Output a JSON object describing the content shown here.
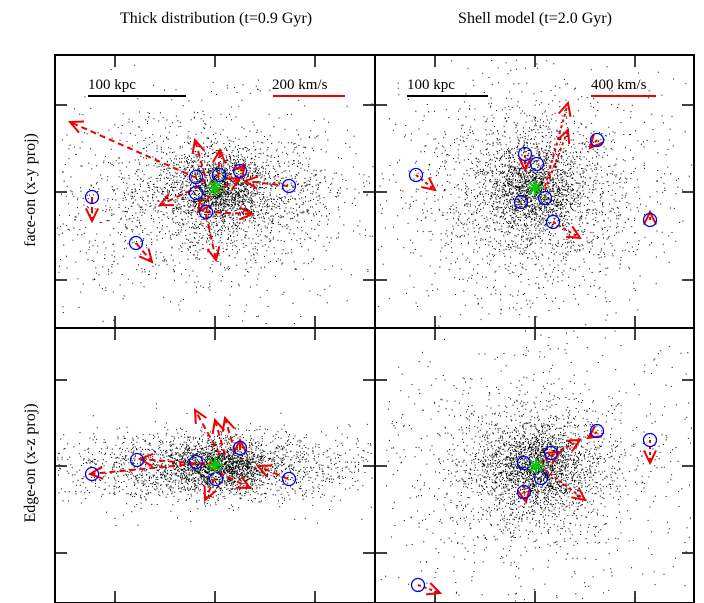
{
  "columns": [
    {
      "title": "Thick distribution (t=0.9 Gyr)"
    },
    {
      "title": "Shell model (t=2.0 Gyr)"
    }
  ],
  "rows": [
    {
      "label": "face-on (x-y proj)"
    },
    {
      "label": "Edge-on (x-z proj)"
    }
  ],
  "panels": [
    {
      "id": "p11",
      "length_scale": "100 kpc",
      "velocity_scale": "200 km/s"
    },
    {
      "id": "p12",
      "length_scale": "100 kpc",
      "velocity_scale": "400 km/s"
    },
    {
      "id": "p21"
    },
    {
      "id": "p22"
    }
  ],
  "colors": {
    "particles": "#000000",
    "satellite_circle": "#0000ee",
    "velocity_arrow": "#ee0000",
    "center_marker": "#00cc00"
  }
}
